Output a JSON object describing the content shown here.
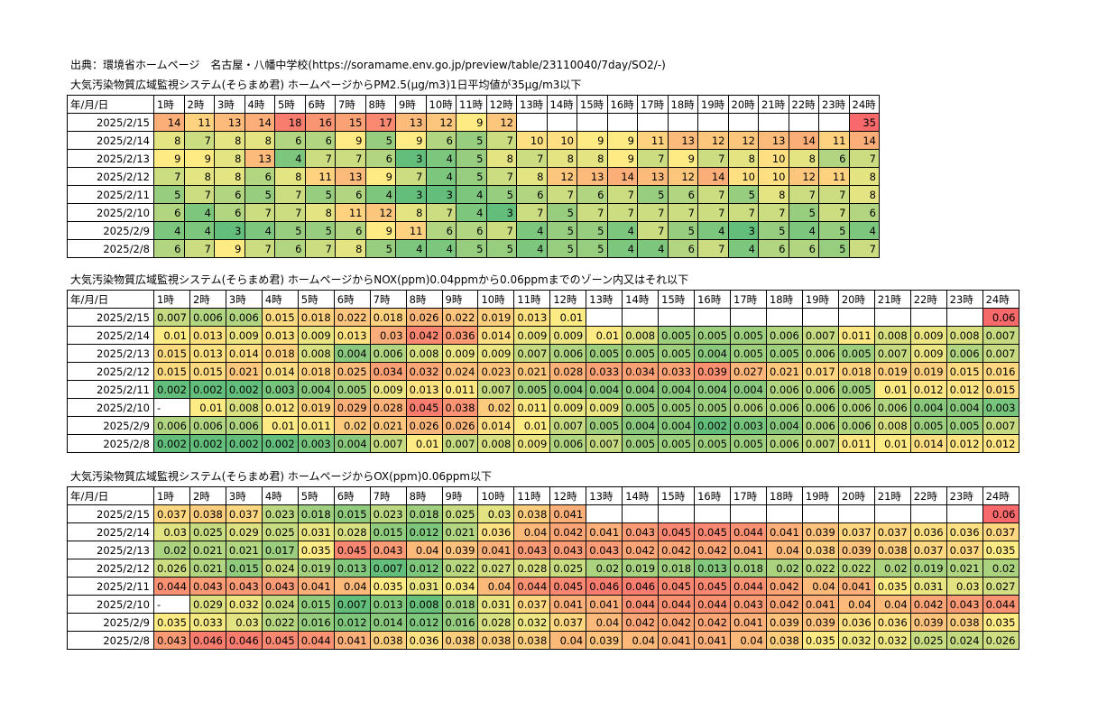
{
  "source_line": "出典：環境省ホームページ　名古屋・八幡中学校(https://soramame.env.go.jp/preview/table/23110040/7day/SO2/-)",
  "header_first": "年/月/日",
  "hours": [
    "1時",
    "2時",
    "3時",
    "4時",
    "5時",
    "6時",
    "7時",
    "8時",
    "9時",
    "10時",
    "11時",
    "12時",
    "13時",
    "14時",
    "15時",
    "16時",
    "17時",
    "18時",
    "19時",
    "20時",
    "21時",
    "22時",
    "23時",
    "24時"
  ],
  "dates": [
    "2025/2/15",
    "2025/2/14",
    "2025/2/13",
    "2025/2/12",
    "2025/2/11",
    "2025/2/10",
    "2025/2/9",
    "2025/2/8"
  ],
  "colors": {
    "green": "#63be7b",
    "yellow": "#ffeb84",
    "red": "#f8696b"
  },
  "tables": [
    {
      "title": "大気汚染物質広域監視システム(そらまめ君) ホームページからPM2.5(μg/m3)1日平均値が35μg/m3以下",
      "scale": {
        "min": 3,
        "mid": 9,
        "max": 18,
        "flag": 35
      },
      "rows": [
        [
          "14",
          "11",
          "13",
          "14",
          "18",
          "16",
          "15",
          "17",
          "13",
          "12",
          "9",
          "12",
          "",
          "",
          "",
          "",
          "",
          "",
          "",
          "",
          "",
          "",
          "",
          "35"
        ],
        [
          "8",
          "7",
          "8",
          "8",
          "6",
          "6",
          "9",
          "5",
          "9",
          "6",
          "5",
          "7",
          "10",
          "10",
          "9",
          "9",
          "11",
          "13",
          "12",
          "12",
          "13",
          "14",
          "11",
          "14"
        ],
        [
          "9",
          "9",
          "8",
          "13",
          "4",
          "7",
          "7",
          "6",
          "3",
          "4",
          "5",
          "8",
          "7",
          "8",
          "8",
          "9",
          "7",
          "9",
          "7",
          "8",
          "10",
          "8",
          "6",
          "7"
        ],
        [
          "7",
          "8",
          "8",
          "6",
          "8",
          "11",
          "13",
          "9",
          "7",
          "4",
          "5",
          "7",
          "8",
          "12",
          "13",
          "14",
          "13",
          "12",
          "14",
          "10",
          "10",
          "12",
          "11",
          "8"
        ],
        [
          "5",
          "7",
          "6",
          "5",
          "7",
          "5",
          "6",
          "4",
          "3",
          "3",
          "4",
          "5",
          "6",
          "7",
          "6",
          "7",
          "5",
          "6",
          "7",
          "5",
          "8",
          "7",
          "7",
          "8"
        ],
        [
          "6",
          "4",
          "6",
          "7",
          "7",
          "8",
          "11",
          "12",
          "8",
          "7",
          "4",
          "3",
          "7",
          "5",
          "7",
          "7",
          "7",
          "7",
          "7",
          "7",
          "7",
          "5",
          "7",
          "6"
        ],
        [
          "4",
          "4",
          "3",
          "4",
          "5",
          "5",
          "6",
          "9",
          "11",
          "6",
          "6",
          "7",
          "4",
          "5",
          "5",
          "4",
          "7",
          "5",
          "4",
          "3",
          "5",
          "4",
          "5",
          "4"
        ],
        [
          "6",
          "7",
          "9",
          "7",
          "6",
          "7",
          "8",
          "5",
          "4",
          "4",
          "5",
          "5",
          "4",
          "5",
          "5",
          "4",
          "4",
          "6",
          "7",
          "4",
          "6",
          "6",
          "5",
          "7"
        ]
      ]
    },
    {
      "title": "大気汚染物質広域監視システム(そらまめ君) ホームページからNOX(ppm)0.04ppmから0.06ppmまでのゾーン内又はそれ以下",
      "scale": {
        "min": 0.002,
        "mid": 0.01,
        "max": 0.045,
        "flag": 0.06
      },
      "rows": [
        [
          "0.007",
          "0.006",
          "0.006",
          "0.015",
          "0.018",
          "0.022",
          "0.018",
          "0.026",
          "0.022",
          "0.019",
          "0.013",
          "0.01",
          "",
          "",
          "",
          "",
          "",
          "",
          "",
          "",
          "",
          "",
          "",
          "0.06"
        ],
        [
          "0.01",
          "0.013",
          "0.009",
          "0.013",
          "0.009",
          "0.013",
          "0.03",
          "0.042",
          "0.036",
          "0.014",
          "0.009",
          "0.009",
          "0.01",
          "0.008",
          "0.005",
          "0.005",
          "0.005",
          "0.006",
          "0.007",
          "0.011",
          "0.008",
          "0.009",
          "0.008",
          "0.007"
        ],
        [
          "0.015",
          "0.013",
          "0.014",
          "0.018",
          "0.008",
          "0.004",
          "0.006",
          "0.008",
          "0.009",
          "0.009",
          "0.007",
          "0.006",
          "0.005",
          "0.005",
          "0.005",
          "0.004",
          "0.005",
          "0.005",
          "0.006",
          "0.005",
          "0.007",
          "0.009",
          "0.006",
          "0.007"
        ],
        [
          "0.015",
          "0.015",
          "0.021",
          "0.014",
          "0.018",
          "0.025",
          "0.034",
          "0.032",
          "0.024",
          "0.023",
          "0.021",
          "0.028",
          "0.033",
          "0.034",
          "0.033",
          "0.039",
          "0.027",
          "0.021",
          "0.017",
          "0.018",
          "0.019",
          "0.019",
          "0.015",
          "0.016"
        ],
        [
          "0.002",
          "0.002",
          "0.002",
          "0.003",
          "0.004",
          "0.005",
          "0.009",
          "0.013",
          "0.011",
          "0.007",
          "0.005",
          "0.004",
          "0.004",
          "0.004",
          "0.004",
          "0.004",
          "0.004",
          "0.006",
          "0.006",
          "0.005",
          "0.01",
          "0.012",
          "0.012",
          "0.015"
        ],
        [
          "-",
          "0.01",
          "0.008",
          "0.012",
          "0.019",
          "0.029",
          "0.028",
          "0.045",
          "0.038",
          "0.02",
          "0.011",
          "0.009",
          "0.009",
          "0.005",
          "0.005",
          "0.005",
          "0.006",
          "0.006",
          "0.006",
          "0.006",
          "0.006",
          "0.004",
          "0.004",
          "0.003"
        ],
        [
          "0.006",
          "0.006",
          "0.006",
          "0.01",
          "0.011",
          "0.02",
          "0.021",
          "0.026",
          "0.026",
          "0.014",
          "0.01",
          "0.007",
          "0.005",
          "0.004",
          "0.004",
          "0.002",
          "0.003",
          "0.004",
          "0.006",
          "0.006",
          "0.008",
          "0.005",
          "0.005",
          "0.007"
        ],
        [
          "0.002",
          "0.002",
          "0.002",
          "0.002",
          "0.003",
          "0.004",
          "0.007",
          "0.01",
          "0.007",
          "0.008",
          "0.009",
          "0.006",
          "0.007",
          "0.005",
          "0.005",
          "0.005",
          "0.005",
          "0.006",
          "0.007",
          "0.011",
          "0.01",
          "0.014",
          "0.012",
          "0.012"
        ]
      ]
    },
    {
      "title": "大気汚染物質広域監視システム(そらまめ君) ホームページからOX(ppm)0.06ppm以下",
      "scale": {
        "min": 0.007,
        "mid": 0.035,
        "max": 0.046,
        "flag": 0.06
      },
      "rows": [
        [
          "0.037",
          "0.038",
          "0.037",
          "0.023",
          "0.018",
          "0.015",
          "0.023",
          "0.018",
          "0.025",
          "0.03",
          "0.038",
          "0.041",
          "",
          "",
          "",
          "",
          "",
          "",
          "",
          "",
          "",
          "",
          "",
          "0.06"
        ],
        [
          "0.03",
          "0.025",
          "0.029",
          "0.025",
          "0.031",
          "0.028",
          "0.015",
          "0.012",
          "0.021",
          "0.036",
          "0.04",
          "0.042",
          "0.041",
          "0.043",
          "0.045",
          "0.045",
          "0.044",
          "0.041",
          "0.039",
          "0.037",
          "0.037",
          "0.036",
          "0.036",
          "0.037"
        ],
        [
          "0.02",
          "0.021",
          "0.021",
          "0.017",
          "0.035",
          "0.045",
          "0.043",
          "0.04",
          "0.039",
          "0.041",
          "0.043",
          "0.043",
          "0.043",
          "0.042",
          "0.042",
          "0.042",
          "0.041",
          "0.04",
          "0.038",
          "0.039",
          "0.038",
          "0.037",
          "0.037",
          "0.035"
        ],
        [
          "0.026",
          "0.021",
          "0.015",
          "0.024",
          "0.019",
          "0.013",
          "0.007",
          "0.012",
          "0.022",
          "0.027",
          "0.028",
          "0.025",
          "0.02",
          "0.019",
          "0.018",
          "0.013",
          "0.018",
          "0.02",
          "0.022",
          "0.022",
          "0.02",
          "0.019",
          "0.021",
          "0.02"
        ],
        [
          "0.044",
          "0.043",
          "0.043",
          "0.043",
          "0.041",
          "0.04",
          "0.035",
          "0.031",
          "0.034",
          "0.04",
          "0.044",
          "0.045",
          "0.046",
          "0.046",
          "0.045",
          "0.045",
          "0.044",
          "0.042",
          "0.04",
          "0.041",
          "0.035",
          "0.031",
          "0.03",
          "0.027"
        ],
        [
          "-",
          "0.029",
          "0.032",
          "0.024",
          "0.015",
          "0.007",
          "0.013",
          "0.008",
          "0.018",
          "0.031",
          "0.037",
          "0.041",
          "0.041",
          "0.044",
          "0.044",
          "0.044",
          "0.043",
          "0.042",
          "0.041",
          "0.04",
          "0.04",
          "0.042",
          "0.043",
          "0.044"
        ],
        [
          "0.035",
          "0.033",
          "0.03",
          "0.022",
          "0.016",
          "0.012",
          "0.014",
          "0.012",
          "0.016",
          "0.028",
          "0.032",
          "0.037",
          "0.04",
          "0.042",
          "0.042",
          "0.042",
          "0.041",
          "0.039",
          "0.039",
          "0.036",
          "0.036",
          "0.039",
          "0.038",
          "0.035"
        ],
        [
          "0.043",
          "0.046",
          "0.046",
          "0.045",
          "0.044",
          "0.041",
          "0.038",
          "0.036",
          "0.038",
          "0.038",
          "0.038",
          "0.04",
          "0.039",
          "0.04",
          "0.041",
          "0.041",
          "0.04",
          "0.038",
          "0.035",
          "0.032",
          "0.032",
          "0.025",
          "0.024",
          "0.026"
        ]
      ]
    }
  ]
}
